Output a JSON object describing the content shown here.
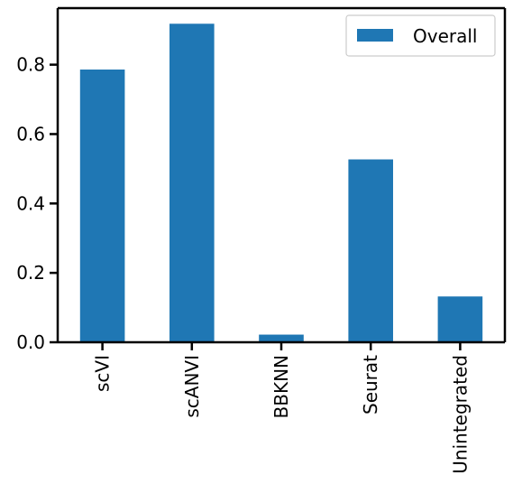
{
  "chart_data": {
    "type": "bar",
    "categories": [
      "scVI",
      "scANVI",
      "BBKNN",
      "Seurat",
      "Unintegrated"
    ],
    "series": [
      {
        "name": "Overall",
        "values": [
          0.786,
          0.918,
          0.022,
          0.527,
          0.132
        ]
      }
    ],
    "ylim": [
      0,
      0.963
    ],
    "yticks": [
      0.0,
      0.2,
      0.4,
      0.6,
      0.8
    ],
    "ytick_labels": [
      "0.0",
      "0.2",
      "0.4",
      "0.6",
      "0.8"
    ],
    "title": "",
    "xlabel": "",
    "ylabel": "",
    "legend": {
      "position": "top-right"
    },
    "grid": false,
    "colors": {
      "bar": "#1f77b4",
      "axis": "#000000"
    }
  }
}
